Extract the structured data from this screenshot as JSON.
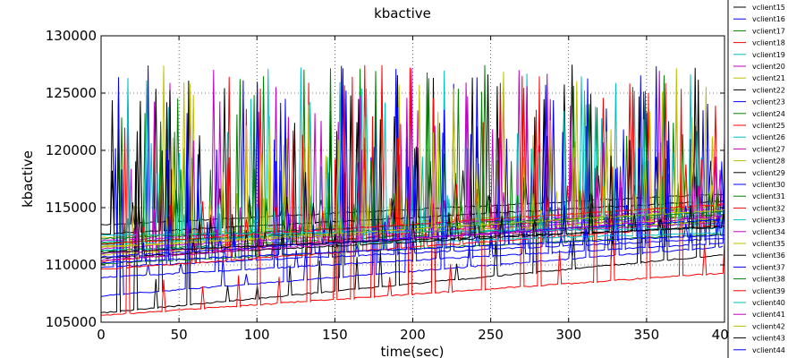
{
  "chart_data": {
    "type": "line",
    "title": "kbactive",
    "xlabel": "time(sec)",
    "ylabel": "kbactive",
    "xlim": [
      0,
      400
    ],
    "ylim": [
      105000,
      130000
    ],
    "xticks": [
      0,
      50,
      100,
      150,
      200,
      250,
      300,
      350,
      400
    ],
    "xtick_labels": [
      "0",
      "50",
      "100",
      "150",
      "200",
      "250",
      "300",
      "350",
      "400"
    ],
    "yticks": [
      105000,
      110000,
      115000,
      120000,
      125000,
      130000
    ],
    "ytick_labels": [
      "105000",
      "110000",
      "115000",
      "120000",
      "125000",
      "130000"
    ],
    "grid": true,
    "legend_position": "right, outside plot (partially cut off)",
    "series": [
      {
        "name": "vclient15",
        "color": "#000000",
        "base": [
          113500,
          116200
        ],
        "spike_phase": 0
      },
      {
        "name": "vclient16",
        "color": "#0000ff",
        "base": [
          109800,
          112300
        ],
        "spike_phase": 3
      },
      {
        "name": "vclient17",
        "color": "#008000",
        "base": [
          111200,
          113900
        ],
        "spike_phase": 6
      },
      {
        "name": "vclient18",
        "color": "#ff0000",
        "base": [
          110300,
          115200
        ],
        "spike_phase": 9
      },
      {
        "name": "vclient19",
        "color": "#00bfbf",
        "base": [
          112000,
          113600
        ],
        "spike_phase": 12
      },
      {
        "name": "vclient20",
        "color": "#bf00bf",
        "base": [
          111400,
          114300
        ],
        "spike_phase": 15
      },
      {
        "name": "vclient21",
        "color": "#bfbf00",
        "base": [
          112400,
          115100
        ],
        "spike_phase": 18
      },
      {
        "name": "vclient22",
        "color": "#000000",
        "base": [
          105800,
          110900
        ],
        "spike_phase": 1
      },
      {
        "name": "vclient23",
        "color": "#0000ff",
        "base": [
          107300,
          111600
        ],
        "spike_phase": 4
      },
      {
        "name": "vclient24",
        "color": "#008000",
        "base": [
          110100,
          112700
        ],
        "spike_phase": 7
      },
      {
        "name": "vclient25",
        "color": "#ff0000",
        "base": [
          105600,
          109300
        ],
        "spike_phase": 10
      },
      {
        "name": "vclient26",
        "color": "#00bfbf",
        "base": [
          111700,
          114700
        ],
        "spike_phase": 13
      },
      {
        "name": "vclient27",
        "color": "#bf00bf",
        "base": [
          112100,
          114900
        ],
        "spike_phase": 16
      },
      {
        "name": "vclient28",
        "color": "#bfbf00",
        "base": [
          110900,
          113800
        ],
        "spike_phase": 19
      },
      {
        "name": "vclient29",
        "color": "#000000",
        "base": [
          112700,
          115600
        ],
        "spike_phase": 2
      },
      {
        "name": "vclient30",
        "color": "#0000ff",
        "base": [
          108900,
          111900
        ],
        "spike_phase": 5
      },
      {
        "name": "vclient31",
        "color": "#008000",
        "base": [
          111900,
          114400
        ],
        "spike_phase": 8
      },
      {
        "name": "vclient32",
        "color": "#ff0000",
        "base": [
          109600,
          113500
        ],
        "spike_phase": 11
      },
      {
        "name": "vclient33",
        "color": "#00bfbf",
        "base": [
          111300,
          112800
        ],
        "spike_phase": 14
      },
      {
        "name": "vclient34",
        "color": "#bf00bf",
        "base": [
          111000,
          113700
        ],
        "spike_phase": 17
      },
      {
        "name": "vclient35",
        "color": "#bfbf00",
        "base": [
          111600,
          114100
        ],
        "spike_phase": 20
      },
      {
        "name": "vclient36",
        "color": "#000000",
        "base": [
          110600,
          113400
        ],
        "spike_phase": 21
      },
      {
        "name": "vclient37",
        "color": "#0000ff",
        "base": [
          110700,
          114000
        ],
        "spike_phase": 22
      },
      {
        "name": "vclient38",
        "color": "#008000",
        "base": [
          112300,
          114600
        ],
        "spike_phase": 23
      },
      {
        "name": "vclient39",
        "color": "#ff0000",
        "base": [
          111800,
          115300
        ],
        "spike_phase": 24
      },
      {
        "name": "vclient40",
        "color": "#00bfbf",
        "base": [
          112600,
          113200
        ],
        "spike_phase": 25
      },
      {
        "name": "vclient41",
        "color": "#bf00bf",
        "base": [
          110400,
          114200
        ],
        "spike_phase": 26
      },
      {
        "name": "vclient42",
        "color": "#bfbf00",
        "base": [
          111500,
          114800
        ],
        "spike_phase": 27
      },
      {
        "name": "vclient43",
        "color": "#000000",
        "base": [
          111100,
          113300
        ],
        "spike_phase": 28
      },
      {
        "name": "vclient44",
        "color": "#0000ff",
        "base": [
          110200,
          112600
        ],
        "spike_phase": 29
      }
    ]
  }
}
